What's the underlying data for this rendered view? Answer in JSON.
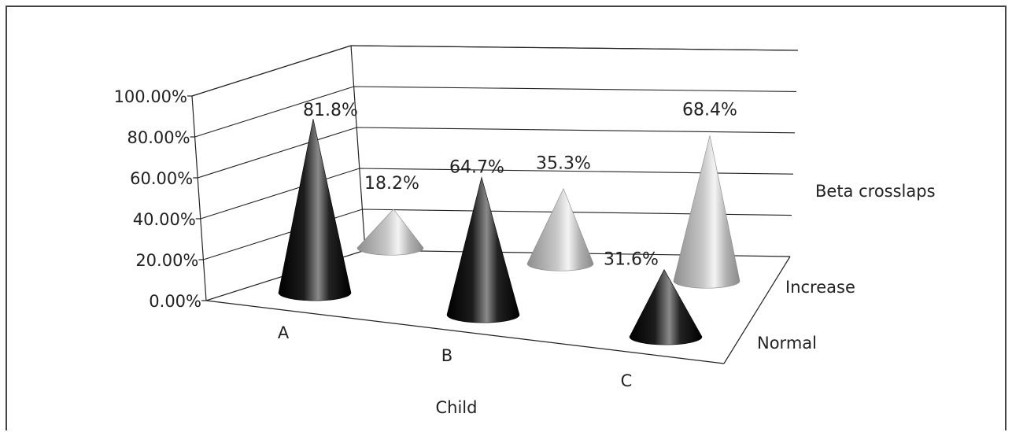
{
  "chart_data": {
    "type": "bar",
    "subtype": "3d-cone",
    "categories": [
      "A",
      "B",
      "C"
    ],
    "series": [
      {
        "name": "Normal",
        "values": [
          81.8,
          64.7,
          31.6
        ],
        "color": "#111111"
      },
      {
        "name": "Increase",
        "values": [
          18.2,
          35.3,
          68.4
        ],
        "color": "#b8b8b8"
      }
    ],
    "data_labels": [
      "81.8%",
      "64.7%",
      "31.6%",
      "18.2%",
      "35.3%",
      "68.4%"
    ],
    "xlabel": "Child",
    "zlabel": "Beta crosslaps",
    "ylim": [
      0,
      100
    ],
    "y_ticks": [
      "0.00%",
      "20.00%",
      "40.00%",
      "60.00%",
      "80.00%",
      "100.00%"
    ],
    "grid": true
  }
}
